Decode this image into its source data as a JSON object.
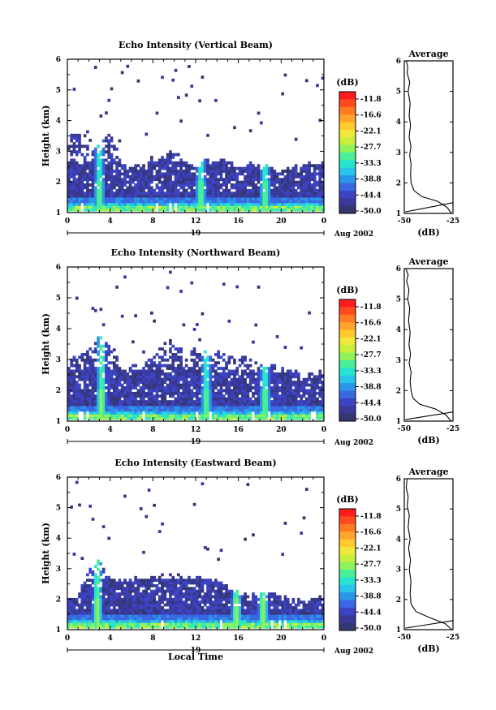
{
  "colorbar": {
    "unit_label": "(dB)",
    "tick_labels": [
      "-11.8",
      "-16.6",
      "-22.1",
      "-27.7",
      "-33.3",
      "-38.8",
      "-44.4",
      "-50.0"
    ],
    "colors": [
      "#ff1c1c",
      "#ff4a1e",
      "#ff7a22",
      "#ffa42a",
      "#ffca2e",
      "#f0e83a",
      "#c7ef3c",
      "#8ef25a",
      "#49ee98",
      "#27e4d0",
      "#28c4ec",
      "#2a96ea",
      "#3a68e2",
      "#3c44c4",
      "#3a3898",
      "#333870"
    ]
  },
  "chart_data": [
    {
      "type": "heatmap",
      "title": "Echo Intensity (Vertical Beam)",
      "ylabel": "Height (km)",
      "xlabel": "",
      "x_ticks": [
        "0",
        "4",
        "8",
        "12",
        "16",
        "20",
        "0"
      ],
      "y_ticks": [
        "1",
        "2",
        "3",
        "4",
        "5",
        "6"
      ],
      "xlim": [
        0,
        24
      ],
      "ylim": [
        1,
        6
      ],
      "date_label": "19",
      "month_label": "Aug 2002",
      "echo_top_km": [
        3.3,
        3.6,
        3.0,
        3.2,
        3.6,
        2.7,
        2.4,
        2.6,
        2.7,
        2.8,
        2.9,
        2.6,
        2.5,
        2.7,
        2.6,
        2.7,
        2.5,
        2.6,
        2.4,
        2.5,
        2.3,
        2.4,
        2.5,
        2.6
      ],
      "convective_plumes_hour": [
        3.0,
        12.5,
        18.5
      ],
      "average_profile": {
        "title": "Average",
        "xlabel": "(dB)",
        "x_ticks": [
          "-50",
          "-25"
        ],
        "y_ticks": [
          "1",
          "2",
          "3",
          "4",
          "5",
          "6"
        ],
        "xlim": [
          -50,
          -25
        ],
        "ylim": [
          1,
          6
        ],
        "points": [
          [
            -25.8,
            1.0
          ],
          [
            -28,
            1.2
          ],
          [
            -33,
            1.4
          ],
          [
            -41,
            1.55
          ],
          [
            -45,
            1.75
          ],
          [
            -46.5,
            2.0
          ],
          [
            -46.8,
            2.3
          ],
          [
            -46.5,
            2.6
          ],
          [
            -47.2,
            2.9
          ],
          [
            -46.6,
            3.2
          ],
          [
            -47.5,
            3.5
          ],
          [
            -46.8,
            3.9
          ],
          [
            -47.5,
            4.2
          ],
          [
            -47.0,
            4.6
          ],
          [
            -48.0,
            5.0
          ],
          [
            -47.2,
            5.3
          ],
          [
            -48.5,
            5.6
          ],
          [
            -48.2,
            5.8
          ],
          [
            -49.0,
            6.0
          ]
        ],
        "reference_line": [
          [
            -49.5,
            1.05
          ],
          [
            -25,
            1.35
          ]
        ]
      }
    },
    {
      "type": "heatmap",
      "title": "Echo Intensity (Northward Beam)",
      "ylabel": "Height (km)",
      "xlabel": "",
      "x_ticks": [
        "0",
        "4",
        "8",
        "12",
        "16",
        "20",
        "0"
      ],
      "y_ticks": [
        "1",
        "2",
        "3",
        "4",
        "5",
        "6"
      ],
      "xlim": [
        0,
        24
      ],
      "ylim": [
        1,
        6
      ],
      "date_label": "19",
      "month_label": "Aug 2002",
      "echo_top_km": [
        3.1,
        3.0,
        3.3,
        3.6,
        3.4,
        2.7,
        2.7,
        2.9,
        3.1,
        3.4,
        3.6,
        3.0,
        3.3,
        3.1,
        3.2,
        3.0,
        3.1,
        2.9,
        2.8,
        2.8,
        2.6,
        2.7,
        2.4,
        2.5
      ],
      "convective_plumes_hour": [
        3.2,
        13.0,
        18.5
      ],
      "average_profile": {
        "title": "Average",
        "xlabel": "(dB)",
        "x_ticks": [
          "-50",
          "-25"
        ],
        "y_ticks": [
          "1",
          "2",
          "3",
          "4",
          "5",
          "6"
        ],
        "xlim": [
          -50,
          -25
        ],
        "ylim": [
          1,
          6
        ],
        "points": [
          [
            -26.0,
            1.0
          ],
          [
            -28.5,
            1.2
          ],
          [
            -34,
            1.4
          ],
          [
            -42,
            1.55
          ],
          [
            -45.5,
            1.75
          ],
          [
            -46.5,
            2.0
          ],
          [
            -47.0,
            2.3
          ],
          [
            -46.5,
            2.6
          ],
          [
            -47.5,
            2.9
          ],
          [
            -46.8,
            3.2
          ],
          [
            -47.6,
            3.5
          ],
          [
            -47.0,
            3.9
          ],
          [
            -47.8,
            4.3
          ],
          [
            -47.2,
            4.7
          ],
          [
            -48.2,
            5.0
          ],
          [
            -47.6,
            5.3
          ],
          [
            -48.8,
            5.6
          ],
          [
            -48.0,
            5.8
          ],
          [
            -49.2,
            6.0
          ]
        ],
        "reference_line": [
          [
            -49.5,
            1.05
          ],
          [
            -25,
            1.3
          ]
        ]
      }
    },
    {
      "type": "heatmap",
      "title": "Echo Intensity (Eastward Beam)",
      "ylabel": "Height (km)",
      "xlabel": "Local Time",
      "x_ticks": [
        "0",
        "4",
        "8",
        "12",
        "16",
        "20",
        "0"
      ],
      "y_ticks": [
        "1",
        "2",
        "3",
        "4",
        "5",
        "6"
      ],
      "xlim": [
        0,
        24
      ],
      "ylim": [
        1,
        6
      ],
      "date_label": "19",
      "month_label": "Aug 2002",
      "echo_top_km": [
        2.0,
        2.1,
        2.9,
        3.2,
        2.7,
        2.6,
        2.6,
        2.6,
        2.7,
        2.8,
        2.7,
        2.6,
        2.8,
        2.7,
        2.6,
        2.4,
        2.2,
        2.0,
        2.1,
        2.3,
        2.0,
        1.9,
        1.9,
        2.0
      ],
      "convective_plumes_hour": [
        2.8,
        15.8,
        18.3
      ],
      "average_profile": {
        "title": "Average",
        "xlabel": "(dB)",
        "x_ticks": [
          "-50",
          "-25"
        ],
        "y_ticks": [
          "1",
          "2",
          "3",
          "4",
          "5",
          "6"
        ],
        "xlim": [
          -50,
          -25
        ],
        "ylim": [
          1,
          6
        ],
        "points": [
          [
            -25.6,
            1.0
          ],
          [
            -29,
            1.2
          ],
          [
            -37,
            1.4
          ],
          [
            -44,
            1.6
          ],
          [
            -46.5,
            1.85
          ],
          [
            -47.0,
            2.2
          ],
          [
            -46.6,
            2.6
          ],
          [
            -47.4,
            3.0
          ],
          [
            -46.8,
            3.3
          ],
          [
            -47.8,
            3.7
          ],
          [
            -47.0,
            4.0
          ],
          [
            -48.0,
            4.4
          ],
          [
            -47.4,
            4.8
          ],
          [
            -48.5,
            5.1
          ],
          [
            -48.0,
            5.4
          ],
          [
            -49.0,
            5.7
          ],
          [
            -48.6,
            6.0
          ]
        ],
        "reference_line": [
          [
            -49.5,
            1.05
          ],
          [
            -25,
            1.3
          ]
        ]
      }
    }
  ]
}
